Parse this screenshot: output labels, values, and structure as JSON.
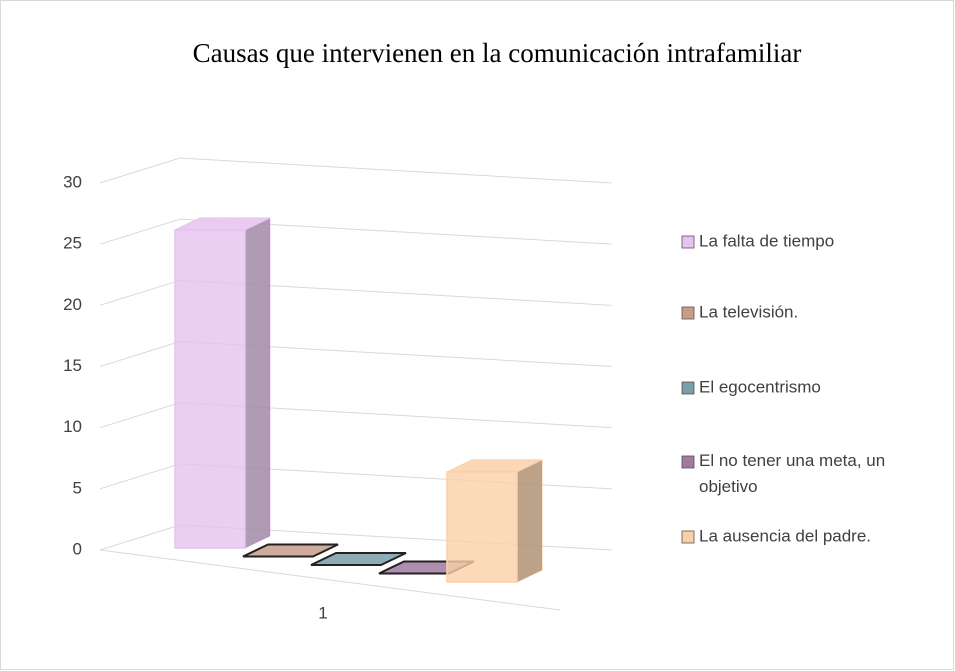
{
  "chart_data": {
    "type": "bar3d",
    "title": "Causas que intervienen en la comunicación intrafamiliar",
    "categories": [
      "1"
    ],
    "series": [
      {
        "name": "La falta de tiempo",
        "color": "#e6c3ef",
        "values": [
          26
        ]
      },
      {
        "name": "La televisión.",
        "color": "#c89b88",
        "values": [
          0
        ]
      },
      {
        "name": "El egocentrismo",
        "color": "#7a9ea8",
        "values": [
          0
        ]
      },
      {
        "name": "El no tener una meta, un objetivo",
        "color": "#a07aa0",
        "values": [
          0
        ]
      },
      {
        "name": "La ausencia del padre.",
        "color": "#fbcfa8",
        "values": [
          9
        ]
      }
    ],
    "ylim": [
      0,
      30
    ],
    "yticks": [
      0,
      5,
      10,
      15,
      20,
      25,
      30
    ],
    "grid": true
  }
}
